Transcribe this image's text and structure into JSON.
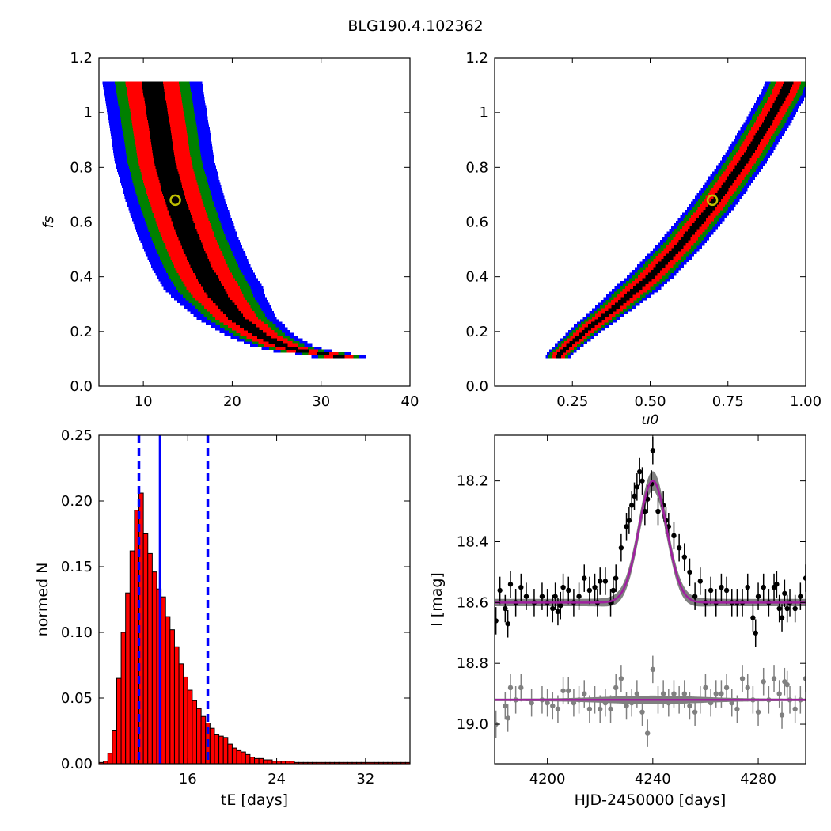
{
  "figure_title": "BLG190.4.102362",
  "colors": {
    "sigma1": "#000000",
    "sigma2": "#ff0000",
    "sigma3": "#008000",
    "sigma4": "#0000ff",
    "best_fit_marker": "#bfbf00",
    "hist_fill": "#ff0000",
    "hist_edge": "#000000",
    "vline": "#0000ff",
    "model": "#a020a0",
    "model_band": "#808080",
    "data": "#000000",
    "residuals": "#808080"
  },
  "chart_data": [
    {
      "type": "heatmap",
      "name": "tE-fs",
      "xlabel": "",
      "ylabel": "f_s",
      "xlim": [
        5,
        40
      ],
      "ylim": [
        0,
        1.2
      ],
      "xticks": [
        10,
        20,
        30,
        40
      ],
      "yticks": [
        0.0,
        0.2,
        0.4,
        0.6,
        0.8,
        1.0,
        1.2
      ],
      "grid": false,
      "best_fit": {
        "x": 13.6,
        "y": 0.68
      },
      "ridge": [
        [
          11.0,
          1.11
        ],
        [
          11.8,
          0.95
        ],
        [
          12.4,
          0.82
        ],
        [
          13.6,
          0.68
        ],
        [
          15.0,
          0.55
        ],
        [
          16.6,
          0.43
        ],
        [
          18.4,
          0.33
        ],
        [
          20.5,
          0.25
        ],
        [
          23.0,
          0.19
        ],
        [
          25.5,
          0.15
        ],
        [
          28.5,
          0.125
        ],
        [
          32.0,
          0.115
        ]
      ],
      "widths": {
        "sigma1": 1.2,
        "sigma2": 3.0,
        "sigma3": 4.2,
        "sigma4": 5.6
      },
      "y_range": [
        0.11,
        1.11
      ]
    },
    {
      "type": "heatmap",
      "name": "u0-fs",
      "xlabel": "u_0",
      "ylabel": "",
      "xlim": [
        0.0,
        1.0
      ],
      "ylim": [
        0,
        1.2
      ],
      "xticks": [
        0.25,
        0.5,
        0.75,
        1.0
      ],
      "xtick_labels": [
        "0.25",
        "0.50",
        "0.75",
        "1.00"
      ],
      "yticks": [
        0.0,
        0.2,
        0.4,
        0.6,
        0.8,
        1.0,
        1.2
      ],
      "grid": false,
      "best_fit": {
        "x": 0.7,
        "y": 0.68
      },
      "ridge": [
        [
          0.205,
          0.115
        ],
        [
          0.3,
          0.21
        ],
        [
          0.4,
          0.3
        ],
        [
          0.5,
          0.4
        ],
        [
          0.6,
          0.52
        ],
        [
          0.7,
          0.66
        ],
        [
          0.8,
          0.82
        ],
        [
          0.87,
          0.95
        ],
        [
          0.93,
          1.07
        ],
        [
          0.945,
          1.11
        ]
      ],
      "widths": {
        "sigma1": 0.015,
        "sigma2": 0.04,
        "sigma3": 0.058,
        "sigma4": 0.075
      },
      "y_range": [
        0.11,
        1.11
      ]
    },
    {
      "type": "bar",
      "name": "tE-histogram",
      "xlabel": "t_E  [days]",
      "ylabel": "normed N",
      "xlim": [
        8.0,
        36.0
      ],
      "ylim": [
        0.0,
        0.25
      ],
      "xticks": [
        16,
        24,
        32
      ],
      "yticks": [
        0.0,
        0.05,
        0.1,
        0.15,
        0.2,
        0.25
      ],
      "ytick_labels": [
        "0.00",
        "0.05",
        "0.10",
        "0.15",
        "0.20",
        "0.25"
      ],
      "bin_width": 0.4,
      "bin_start": 8.0,
      "values": [
        0.001,
        0.002,
        0.008,
        0.025,
        0.065,
        0.1,
        0.13,
        0.162,
        0.193,
        0.206,
        0.175,
        0.16,
        0.146,
        0.133,
        0.127,
        0.112,
        0.102,
        0.089,
        0.076,
        0.066,
        0.056,
        0.048,
        0.042,
        0.036,
        0.031,
        0.027,
        0.022,
        0.021,
        0.02,
        0.015,
        0.012,
        0.01,
        0.009,
        0.007,
        0.005,
        0.004,
        0.004,
        0.003,
        0.003,
        0.002,
        0.002,
        0.002,
        0.002,
        0.002,
        0.001,
        0.001,
        0.001,
        0.001,
        0.001,
        0.001,
        0.001,
        0.001,
        0.001,
        0.001,
        0.001,
        0.001,
        0.001,
        0.001,
        0.001,
        0.001,
        0.001,
        0.001,
        0.001,
        0.001,
        0.001,
        0.001,
        0.001,
        0.001,
        0.001,
        0.001
      ],
      "median": 13.5,
      "lower": 11.6,
      "upper": 17.8,
      "grid": false
    },
    {
      "type": "scatter",
      "name": "light-curve",
      "xlabel": "HJD-2450000 [days]",
      "ylabel": "I [mag]",
      "xlim": [
        4180,
        4298
      ],
      "ylim": [
        19.13,
        18.05
      ],
      "xticks": [
        4200,
        4240,
        4280
      ],
      "yticks": [
        18.2,
        18.4,
        18.6,
        18.8,
        19.0
      ],
      "ytick_labels": [
        "18.2",
        "18.4",
        "18.6",
        "18.8",
        "19.0"
      ],
      "model": {
        "baseline": 18.6,
        "peak_time": 4240,
        "peak_mag": 18.2,
        "tE": 13.6
      },
      "residual_offset": 18.92,
      "series": [
        {
          "role": "data",
          "points": [
            [
              4180.5,
              18.66
            ],
            [
              4182.0,
              18.56
            ],
            [
              4184.0,
              18.62
            ],
            [
              4185.0,
              18.67
            ],
            [
              4186.0,
              18.54
            ],
            [
              4188.0,
              18.6
            ],
            [
              4190.0,
              18.55
            ],
            [
              4192.0,
              18.58
            ],
            [
              4195.0,
              18.6
            ],
            [
              4198.0,
              18.58
            ],
            [
              4200.0,
              18.6
            ],
            [
              4202.0,
              18.62
            ],
            [
              4203.0,
              18.58
            ],
            [
              4204.0,
              18.63
            ],
            [
              4205.0,
              18.61
            ],
            [
              4206.0,
              18.55
            ],
            [
              4208.0,
              18.56
            ],
            [
              4210.0,
              18.6
            ],
            [
              4212.0,
              18.58
            ],
            [
              4214.0,
              18.52
            ],
            [
              4216.0,
              18.56
            ],
            [
              4218.0,
              18.55
            ],
            [
              4219.0,
              18.6
            ],
            [
              4220.0,
              18.53
            ],
            [
              4222.0,
              18.53
            ],
            [
              4224.0,
              18.6
            ],
            [
              4225.0,
              18.56
            ],
            [
              4226.0,
              18.52
            ],
            [
              4228.0,
              18.42
            ],
            [
              4230.0,
              18.35
            ],
            [
              4231.0,
              18.33
            ],
            [
              4232.0,
              18.28
            ],
            [
              4233.0,
              18.25
            ],
            [
              4234.0,
              18.22
            ],
            [
              4235.0,
              18.17
            ],
            [
              4236.0,
              18.2
            ],
            [
              4237.0,
              18.3
            ],
            [
              4238.0,
              18.26
            ],
            [
              4239.5,
              18.21
            ],
            [
              4240.0,
              18.1
            ],
            [
              4242.0,
              18.3
            ],
            [
              4244.0,
              18.28
            ],
            [
              4245.0,
              18.33
            ],
            [
              4246.0,
              18.35
            ],
            [
              4248.0,
              18.38
            ],
            [
              4250.0,
              18.42
            ],
            [
              4252.0,
              18.45
            ],
            [
              4254.0,
              18.5
            ],
            [
              4256.0,
              18.58
            ],
            [
              4258.0,
              18.53
            ],
            [
              4260.0,
              18.6
            ],
            [
              4262.0,
              18.56
            ],
            [
              4264.0,
              18.6
            ],
            [
              4266.0,
              18.55
            ],
            [
              4268.0,
              18.56
            ],
            [
              4270.0,
              18.6
            ],
            [
              4272.0,
              18.6
            ],
            [
              4274.0,
              18.6
            ],
            [
              4276.0,
              18.55
            ],
            [
              4278.0,
              18.65
            ],
            [
              4279.0,
              18.7
            ],
            [
              4280.0,
              18.58
            ],
            [
              4282.0,
              18.55
            ],
            [
              4284.0,
              18.6
            ],
            [
              4286.0,
              18.55
            ],
            [
              4287.0,
              18.54
            ],
            [
              4288.0,
              18.62
            ],
            [
              4289.0,
              18.65
            ],
            [
              4290.0,
              18.57
            ],
            [
              4291.0,
              18.62
            ],
            [
              4292.0,
              18.6
            ],
            [
              4294.0,
              18.62
            ],
            [
              4296.0,
              18.58
            ],
            [
              4298.0,
              18.52
            ]
          ]
        },
        {
          "role": "residuals",
          "points": [
            [
              4180.5,
              19.0
            ],
            [
              4184.0,
              18.94
            ],
            [
              4185.0,
              18.98
            ],
            [
              4186.0,
              18.88
            ],
            [
              4188.0,
              18.92
            ],
            [
              4190.0,
              18.88
            ],
            [
              4194.0,
              18.93
            ],
            [
              4198.0,
              18.92
            ],
            [
              4200.0,
              18.93
            ],
            [
              4202.0,
              18.94
            ],
            [
              4204.0,
              18.95
            ],
            [
              4206.0,
              18.89
            ],
            [
              4208.0,
              18.89
            ],
            [
              4210.0,
              18.93
            ],
            [
              4212.0,
              18.92
            ],
            [
              4214.0,
              18.9
            ],
            [
              4216.0,
              18.95
            ],
            [
              4218.0,
              18.92
            ],
            [
              4220.0,
              18.95
            ],
            [
              4222.0,
              18.93
            ],
            [
              4224.0,
              18.95
            ],
            [
              4226.0,
              18.88
            ],
            [
              4228.0,
              18.85
            ],
            [
              4230.0,
              18.94
            ],
            [
              4232.0,
              18.93
            ],
            [
              4234.0,
              18.9
            ],
            [
              4236.0,
              18.96
            ],
            [
              4238.0,
              19.03
            ],
            [
              4240.0,
              18.82
            ],
            [
              4242.0,
              18.92
            ],
            [
              4244.0,
              18.9
            ],
            [
              4246.0,
              18.93
            ],
            [
              4248.0,
              18.9
            ],
            [
              4250.0,
              18.92
            ],
            [
              4252.0,
              18.9
            ],
            [
              4254.0,
              18.94
            ],
            [
              4256.0,
              18.96
            ],
            [
              4258.0,
              18.92
            ],
            [
              4260.0,
              18.88
            ],
            [
              4262.0,
              18.93
            ],
            [
              4264.0,
              18.9
            ],
            [
              4266.0,
              18.9
            ],
            [
              4268.0,
              18.88
            ],
            [
              4270.0,
              18.93
            ],
            [
              4272.0,
              18.95
            ],
            [
              4274.0,
              18.85
            ],
            [
              4276.0,
              18.88
            ],
            [
              4278.0,
              18.92
            ],
            [
              4280.0,
              18.96
            ],
            [
              4282.0,
              18.86
            ],
            [
              4284.0,
              18.92
            ],
            [
              4286.0,
              18.85
            ],
            [
              4288.0,
              18.9
            ],
            [
              4289.0,
              18.97
            ],
            [
              4290.0,
              18.86
            ],
            [
              4291.0,
              18.87
            ],
            [
              4292.0,
              18.92
            ],
            [
              4294.0,
              18.95
            ],
            [
              4296.0,
              18.92
            ],
            [
              4298.0,
              18.85
            ]
          ]
        }
      ],
      "grid": false
    }
  ]
}
